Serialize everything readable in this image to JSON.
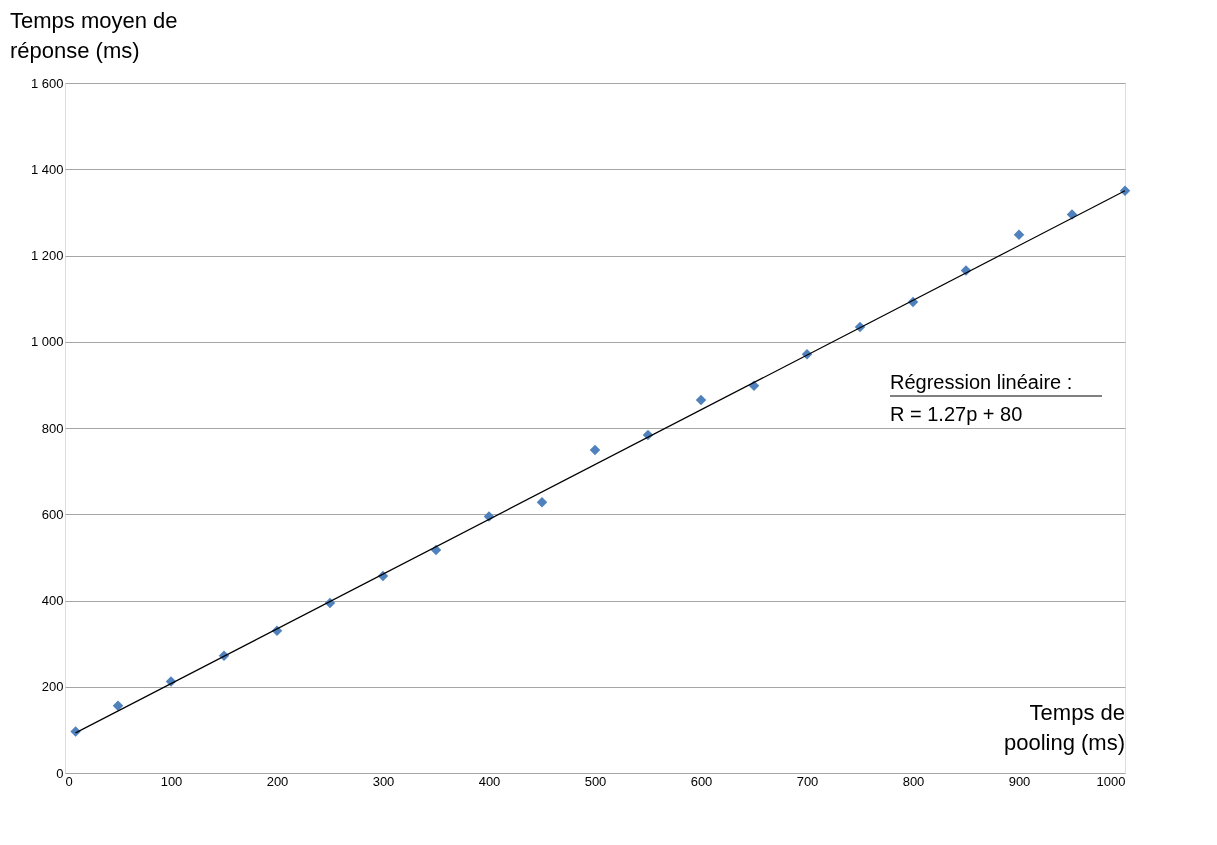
{
  "chart_data": {
    "type": "scatter",
    "xlabel": "Temps de\npooling (ms)",
    "ylabel": "Temps moyen de\nréponse (ms)",
    "x": [
      10,
      50,
      100,
      150,
      200,
      250,
      300,
      350,
      400,
      450,
      500,
      550,
      600,
      650,
      700,
      750,
      800,
      850,
      900,
      950,
      1000
    ],
    "series": [
      {
        "color": "#4f81bd",
        "marker": "diamond",
        "values": [
          96,
          156,
          212,
          272,
          330,
          394,
          457,
          517,
          595,
          628,
          749,
          784,
          865,
          898,
          971,
          1034,
          1092,
          1165,
          1248,
          1295,
          1350
        ]
      },
      {
        "type": "line",
        "color": "#000000",
        "line_style": "solid",
        "x": [
          10,
          1000
        ],
        "values": [
          93,
          1350
        ]
      }
    ],
    "xlim": [
      0,
      1000
    ],
    "xticks": [
      0,
      100,
      200,
      300,
      400,
      500,
      600,
      700,
      800,
      900,
      {
        "value": 1000,
        "label": "1000"
      }
    ],
    "ylim": [
      0,
      1600
    ],
    "yticks": [
      0,
      200,
      400,
      600,
      800,
      {
        "value": 1000,
        "label": "1 000"
      },
      {
        "value": 1200,
        "label": "1 200"
      },
      {
        "value": 1400,
        "label": "1 400"
      },
      {
        "value": 1600,
        "label": "1 600"
      }
    ],
    "grid": "y",
    "legend": false,
    "annotations": [
      "Régression linéaire :",
      "R = 1.27p + 80"
    ]
  }
}
